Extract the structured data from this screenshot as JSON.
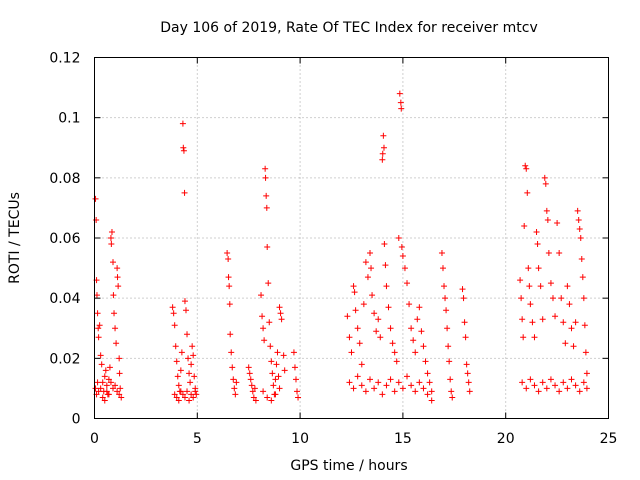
{
  "chart_data": {
    "type": "scatter",
    "title": "Day 106 of 2019, Rate Of TEC Index for receiver mtcv",
    "xlabel": "GPS time / hours",
    "ylabel": "ROTI / TECUs",
    "xlim": [
      0,
      25
    ],
    "ylim": [
      0,
      0.12
    ],
    "x_ticks": [
      0,
      5,
      10,
      15,
      20,
      25
    ],
    "x_tick_labels": [
      "0",
      "5",
      "10",
      "15",
      "20",
      "25"
    ],
    "y_ticks": [
      0,
      0.02,
      0.04,
      0.06,
      0.08,
      0.1,
      0.12
    ],
    "y_tick_labels": [
      "0",
      "0.02",
      "0.04",
      "0.06",
      "0.08",
      "0.1",
      "0.12"
    ],
    "grid": true,
    "marker": "+",
    "color": "#ff0000",
    "series": [
      {
        "name": "ROTI",
        "points": [
          [
            0.05,
            0.073
          ],
          [
            0.08,
            0.066
          ],
          [
            0.1,
            0.046
          ],
          [
            0.12,
            0.041
          ],
          [
            0.15,
            0.035
          ],
          [
            0.18,
            0.03
          ],
          [
            0.2,
            0.027
          ],
          [
            0.25,
            0.031
          ],
          [
            0.3,
            0.021
          ],
          [
            0.35,
            0.018
          ],
          [
            0.4,
            0.012
          ],
          [
            0.45,
            0.009
          ],
          [
            0.5,
            0.014
          ],
          [
            0.55,
            0.016
          ],
          [
            0.6,
            0.011
          ],
          [
            0.65,
            0.008
          ],
          [
            0.7,
            0.013
          ],
          [
            0.75,
            0.017
          ],
          [
            0.8,
            0.06
          ],
          [
            0.82,
            0.058
          ],
          [
            0.85,
            0.062
          ],
          [
            0.9,
            0.052
          ],
          [
            0.92,
            0.041
          ],
          [
            0.95,
            0.035
          ],
          [
            1.0,
            0.03
          ],
          [
            1.05,
            0.025
          ],
          [
            1.1,
            0.05
          ],
          [
            1.12,
            0.047
          ],
          [
            1.15,
            0.044
          ],
          [
            1.2,
            0.02
          ],
          [
            1.22,
            0.015
          ],
          [
            1.25,
            0.01
          ],
          [
            1.3,
            0.007
          ],
          [
            0.05,
            0.01
          ],
          [
            0.1,
            0.008
          ],
          [
            0.15,
            0.012
          ],
          [
            0.2,
            0.009
          ],
          [
            0.3,
            0.01
          ],
          [
            0.4,
            0.007
          ],
          [
            0.5,
            0.006
          ],
          [
            0.6,
            0.009
          ],
          [
            0.7,
            0.008
          ],
          [
            0.8,
            0.012
          ],
          [
            0.9,
            0.01
          ],
          [
            1.0,
            0.011
          ],
          [
            1.1,
            0.009
          ],
          [
            1.2,
            0.008
          ],
          [
            3.8,
            0.037
          ],
          [
            3.85,
            0.035
          ],
          [
            3.9,
            0.031
          ],
          [
            3.95,
            0.024
          ],
          [
            4.0,
            0.019
          ],
          [
            4.05,
            0.014
          ],
          [
            4.1,
            0.011
          ],
          [
            4.15,
            0.009
          ],
          [
            4.2,
            0.016
          ],
          [
            4.25,
            0.022
          ],
          [
            4.3,
            0.098
          ],
          [
            4.32,
            0.09
          ],
          [
            4.35,
            0.089
          ],
          [
            4.38,
            0.075
          ],
          [
            4.4,
            0.039
          ],
          [
            4.45,
            0.036
          ],
          [
            4.5,
            0.028
          ],
          [
            4.55,
            0.02
          ],
          [
            4.6,
            0.015
          ],
          [
            4.65,
            0.012
          ],
          [
            4.7,
            0.018
          ],
          [
            4.75,
            0.024
          ],
          [
            4.8,
            0.021
          ],
          [
            4.85,
            0.014
          ],
          [
            4.9,
            0.01
          ],
          [
            4.95,
            0.008
          ],
          [
            3.9,
            0.008
          ],
          [
            4.0,
            0.007
          ],
          [
            4.1,
            0.006
          ],
          [
            4.2,
            0.009
          ],
          [
            4.3,
            0.008
          ],
          [
            4.4,
            0.007
          ],
          [
            4.5,
            0.009
          ],
          [
            4.6,
            0.006
          ],
          [
            4.7,
            0.008
          ],
          [
            4.8,
            0.007
          ],
          [
            4.9,
            0.009
          ],
          [
            6.45,
            0.055
          ],
          [
            6.5,
            0.053
          ],
          [
            6.52,
            0.047
          ],
          [
            6.55,
            0.044
          ],
          [
            6.58,
            0.038
          ],
          [
            6.6,
            0.028
          ],
          [
            6.65,
            0.022
          ],
          [
            6.7,
            0.017
          ],
          [
            6.75,
            0.013
          ],
          [
            6.8,
            0.01
          ],
          [
            6.85,
            0.008
          ],
          [
            6.9,
            0.012
          ],
          [
            7.5,
            0.017
          ],
          [
            7.55,
            0.015
          ],
          [
            7.6,
            0.013
          ],
          [
            7.65,
            0.011
          ],
          [
            7.7,
            0.009
          ],
          [
            7.75,
            0.007
          ],
          [
            7.8,
            0.01
          ],
          [
            7.85,
            0.006
          ],
          [
            8.1,
            0.041
          ],
          [
            8.15,
            0.034
          ],
          [
            8.2,
            0.03
          ],
          [
            8.25,
            0.026
          ],
          [
            8.3,
            0.083
          ],
          [
            8.32,
            0.08
          ],
          [
            8.35,
            0.074
          ],
          [
            8.38,
            0.07
          ],
          [
            8.4,
            0.057
          ],
          [
            8.45,
            0.045
          ],
          [
            8.5,
            0.032
          ],
          [
            8.55,
            0.024
          ],
          [
            8.6,
            0.019
          ],
          [
            8.65,
            0.015
          ],
          [
            8.7,
            0.011
          ],
          [
            8.75,
            0.008
          ],
          [
            8.8,
            0.013
          ],
          [
            8.85,
            0.018
          ],
          [
            8.9,
            0.022
          ],
          [
            8.95,
            0.014
          ],
          [
            9.0,
            0.037
          ],
          [
            9.05,
            0.035
          ],
          [
            9.1,
            0.033
          ],
          [
            9.2,
            0.021
          ],
          [
            9.25,
            0.016
          ],
          [
            8.2,
            0.009
          ],
          [
            8.4,
            0.007
          ],
          [
            8.6,
            0.006
          ],
          [
            8.8,
            0.008
          ],
          [
            9.0,
            0.01
          ],
          [
            9.7,
            0.022
          ],
          [
            9.75,
            0.017
          ],
          [
            9.8,
            0.013
          ],
          [
            9.85,
            0.009
          ],
          [
            9.9,
            0.007
          ],
          [
            12.3,
            0.034
          ],
          [
            12.4,
            0.027
          ],
          [
            12.5,
            0.022
          ],
          [
            12.6,
            0.044
          ],
          [
            12.65,
            0.042
          ],
          [
            12.7,
            0.036
          ],
          [
            12.8,
            0.03
          ],
          [
            12.9,
            0.025
          ],
          [
            13.0,
            0.018
          ],
          [
            13.1,
            0.038
          ],
          [
            13.2,
            0.052
          ],
          [
            13.3,
            0.047
          ],
          [
            13.4,
            0.055
          ],
          [
            13.45,
            0.05
          ],
          [
            13.5,
            0.041
          ],
          [
            13.6,
            0.035
          ],
          [
            13.7,
            0.029
          ],
          [
            13.8,
            0.033
          ],
          [
            13.9,
            0.027
          ],
          [
            14.0,
            0.086
          ],
          [
            14.02,
            0.088
          ],
          [
            14.05,
            0.094
          ],
          [
            14.08,
            0.09
          ],
          [
            14.1,
            0.058
          ],
          [
            14.15,
            0.051
          ],
          [
            14.2,
            0.044
          ],
          [
            14.3,
            0.037
          ],
          [
            14.4,
            0.03
          ],
          [
            14.5,
            0.025
          ],
          [
            14.6,
            0.022
          ],
          [
            14.7,
            0.019
          ],
          [
            14.8,
            0.06
          ],
          [
            14.85,
            0.108
          ],
          [
            14.9,
            0.105
          ],
          [
            14.92,
            0.103
          ],
          [
            14.95,
            0.057
          ],
          [
            15.0,
            0.054
          ],
          [
            15.1,
            0.05
          ],
          [
            15.2,
            0.045
          ],
          [
            15.3,
            0.038
          ],
          [
            15.4,
            0.03
          ],
          [
            15.5,
            0.026
          ],
          [
            15.6,
            0.022
          ],
          [
            15.7,
            0.033
          ],
          [
            15.8,
            0.037
          ],
          [
            15.9,
            0.029
          ],
          [
            16.0,
            0.024
          ],
          [
            16.1,
            0.019
          ],
          [
            16.2,
            0.015
          ],
          [
            16.3,
            0.012
          ],
          [
            16.4,
            0.009
          ],
          [
            12.4,
            0.012
          ],
          [
            12.6,
            0.01
          ],
          [
            12.8,
            0.014
          ],
          [
            13.0,
            0.011
          ],
          [
            13.2,
            0.009
          ],
          [
            13.4,
            0.013
          ],
          [
            13.6,
            0.01
          ],
          [
            13.8,
            0.012
          ],
          [
            14.0,
            0.008
          ],
          [
            14.2,
            0.011
          ],
          [
            14.4,
            0.013
          ],
          [
            14.6,
            0.009
          ],
          [
            14.8,
            0.012
          ],
          [
            15.0,
            0.01
          ],
          [
            15.2,
            0.014
          ],
          [
            15.4,
            0.011
          ],
          [
            15.6,
            0.009
          ],
          [
            15.8,
            0.012
          ],
          [
            16.0,
            0.01
          ],
          [
            16.2,
            0.008
          ],
          [
            16.4,
            0.006
          ],
          [
            16.9,
            0.055
          ],
          [
            16.95,
            0.05
          ],
          [
            17.0,
            0.044
          ],
          [
            17.05,
            0.04
          ],
          [
            17.1,
            0.036
          ],
          [
            17.15,
            0.03
          ],
          [
            17.2,
            0.024
          ],
          [
            17.25,
            0.019
          ],
          [
            17.3,
            0.013
          ],
          [
            17.35,
            0.009
          ],
          [
            17.4,
            0.007
          ],
          [
            17.9,
            0.043
          ],
          [
            17.95,
            0.04
          ],
          [
            18.0,
            0.032
          ],
          [
            18.05,
            0.027
          ],
          [
            18.1,
            0.018
          ],
          [
            18.15,
            0.015
          ],
          [
            18.2,
            0.012
          ],
          [
            18.25,
            0.009
          ],
          [
            20.7,
            0.046
          ],
          [
            20.75,
            0.04
          ],
          [
            20.8,
            0.033
          ],
          [
            20.85,
            0.027
          ],
          [
            20.9,
            0.064
          ],
          [
            20.95,
            0.084
          ],
          [
            21.0,
            0.083
          ],
          [
            21.05,
            0.075
          ],
          [
            21.1,
            0.05
          ],
          [
            21.15,
            0.044
          ],
          [
            21.2,
            0.038
          ],
          [
            21.3,
            0.032
          ],
          [
            21.4,
            0.027
          ],
          [
            21.5,
            0.062
          ],
          [
            21.55,
            0.058
          ],
          [
            21.6,
            0.05
          ],
          [
            21.7,
            0.044
          ],
          [
            21.8,
            0.033
          ],
          [
            21.9,
            0.08
          ],
          [
            21.95,
            0.078
          ],
          [
            22.0,
            0.069
          ],
          [
            22.05,
            0.066
          ],
          [
            22.1,
            0.055
          ],
          [
            22.2,
            0.045
          ],
          [
            22.3,
            0.04
          ],
          [
            22.4,
            0.034
          ],
          [
            22.5,
            0.065
          ],
          [
            22.6,
            0.055
          ],
          [
            22.7,
            0.04
          ],
          [
            22.8,
            0.032
          ],
          [
            22.9,
            0.025
          ],
          [
            23.0,
            0.044
          ],
          [
            23.1,
            0.038
          ],
          [
            23.2,
            0.03
          ],
          [
            23.3,
            0.024
          ],
          [
            23.4,
            0.032
          ],
          [
            23.5,
            0.069
          ],
          [
            23.55,
            0.066
          ],
          [
            23.6,
            0.063
          ],
          [
            23.65,
            0.06
          ],
          [
            23.7,
            0.053
          ],
          [
            23.75,
            0.047
          ],
          [
            23.8,
            0.04
          ],
          [
            23.85,
            0.031
          ],
          [
            23.9,
            0.022
          ],
          [
            23.95,
            0.015
          ],
          [
            20.8,
            0.012
          ],
          [
            21.0,
            0.01
          ],
          [
            21.2,
            0.013
          ],
          [
            21.4,
            0.011
          ],
          [
            21.6,
            0.009
          ],
          [
            21.8,
            0.012
          ],
          [
            22.0,
            0.01
          ],
          [
            22.2,
            0.013
          ],
          [
            22.4,
            0.011
          ],
          [
            22.6,
            0.009
          ],
          [
            22.8,
            0.012
          ],
          [
            23.0,
            0.01
          ],
          [
            23.2,
            0.013
          ],
          [
            23.4,
            0.011
          ],
          [
            23.6,
            0.009
          ],
          [
            23.8,
            0.012
          ],
          [
            23.95,
            0.01
          ]
        ]
      }
    ]
  }
}
